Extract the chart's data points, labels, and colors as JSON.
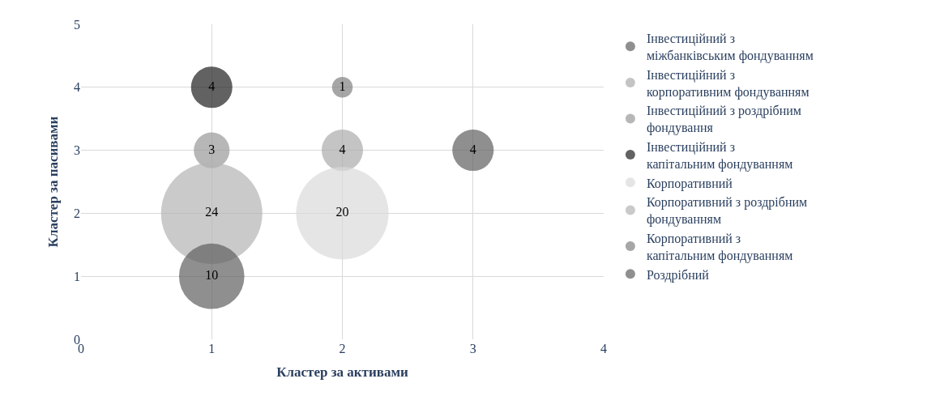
{
  "chart_data": {
    "type": "bubble",
    "xlabel": "Кластер за активами",
    "ylabel": "Кластер за пасивами",
    "xlim": [
      0,
      4
    ],
    "xticks": [
      0,
      1,
      2,
      3,
      4
    ],
    "ylim": [
      0,
      5
    ],
    "yticks": [
      0,
      1,
      2,
      3,
      4,
      5
    ],
    "grid": true,
    "legend": "right",
    "series": [
      {
        "name": "Інвестиційний з міжбанківським фондуванням",
        "color": "#606060",
        "x": [
          3
        ],
        "values": [
          3
        ],
        "sizes": [
          4
        ],
        "value_labels": [
          "4"
        ]
      },
      {
        "name": "Інвестиційний з корпоративним фондуванням",
        "color": "#ababab",
        "x": [
          2
        ],
        "values": [
          3
        ],
        "sizes": [
          4
        ],
        "value_labels": [
          "4"
        ]
      },
      {
        "name": "Інвестиційний з роздрібним фондування",
        "color": "#999999",
        "x": [
          1
        ],
        "values": [
          3
        ],
        "sizes": [
          3
        ],
        "value_labels": [
          "3"
        ]
      },
      {
        "name": "Інвестиційний з капітальним фондуванням",
        "color": "#1f1f1f",
        "x": [
          1
        ],
        "values": [
          4
        ],
        "sizes": [
          4
        ],
        "value_labels": [
          "4"
        ]
      },
      {
        "name": "Корпоративний",
        "color": "#dadada",
        "x": [
          2
        ],
        "values": [
          2
        ],
        "sizes": [
          20
        ],
        "value_labels": [
          "20"
        ]
      },
      {
        "name": "Корпоративний з роздрібним фондуванням",
        "color": "#b4b4b4",
        "x": [
          1
        ],
        "values": [
          2
        ],
        "sizes": [
          24
        ],
        "value_labels": [
          "24"
        ]
      },
      {
        "name": "Корпоративний з капітальним фондуванням",
        "color": "#808080",
        "x": [
          2
        ],
        "values": [
          4
        ],
        "sizes": [
          1
        ],
        "value_labels": [
          "1"
        ]
      },
      {
        "name": "Роздрібний",
        "color": "#606060",
        "x": [
          1
        ],
        "values": [
          1
        ],
        "sizes": [
          10
        ],
        "value_labels": [
          "10"
        ]
      }
    ]
  }
}
